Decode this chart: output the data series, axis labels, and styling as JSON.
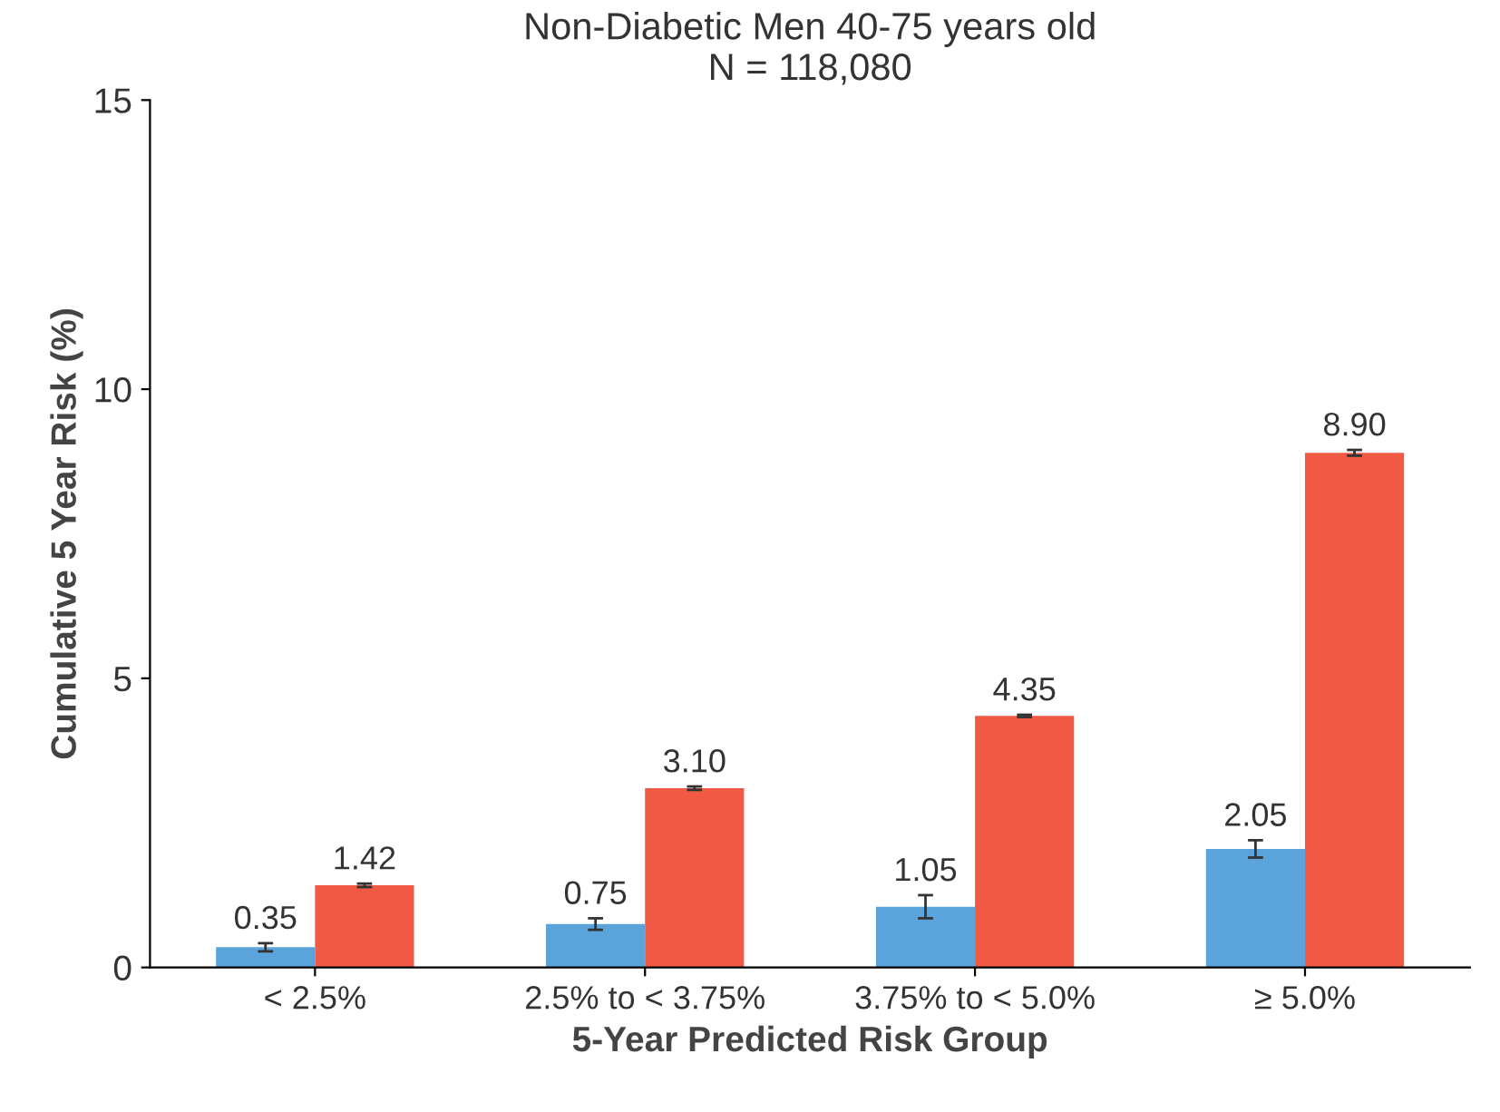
{
  "chart_data": {
    "type": "bar",
    "title": "Non-Diabetic Men 40-75 years old\nN = 118,080",
    "xlabel": "5-Year Predicted Risk Group",
    "ylabel": "Cumulative 5 Year Risk (%)",
    "categories": [
      "< 2.5%",
      "2.5% to < 3.75%",
      "3.75% to < 5.0%",
      "≥ 5.0%"
    ],
    "series": [
      {
        "color": "#5ba3db",
        "values": [
          0.35,
          0.75,
          1.05,
          2.05
        ],
        "value_labels": [
          "0.35",
          "0.75",
          "1.05",
          "2.05"
        ],
        "errors": [
          0.07,
          0.1,
          0.2,
          0.15
        ]
      },
      {
        "color": "#f05a45",
        "values": [
          1.42,
          3.1,
          4.35,
          8.9
        ],
        "value_labels": [
          "1.42",
          "3.10",
          "4.35",
          "8.90"
        ],
        "errors": [
          0.03,
          0.03,
          0.02,
          0.05
        ]
      }
    ],
    "ylim": [
      0,
      15
    ],
    "yticks": [
      0,
      5,
      10,
      15
    ],
    "grid": false,
    "legend": false
  }
}
